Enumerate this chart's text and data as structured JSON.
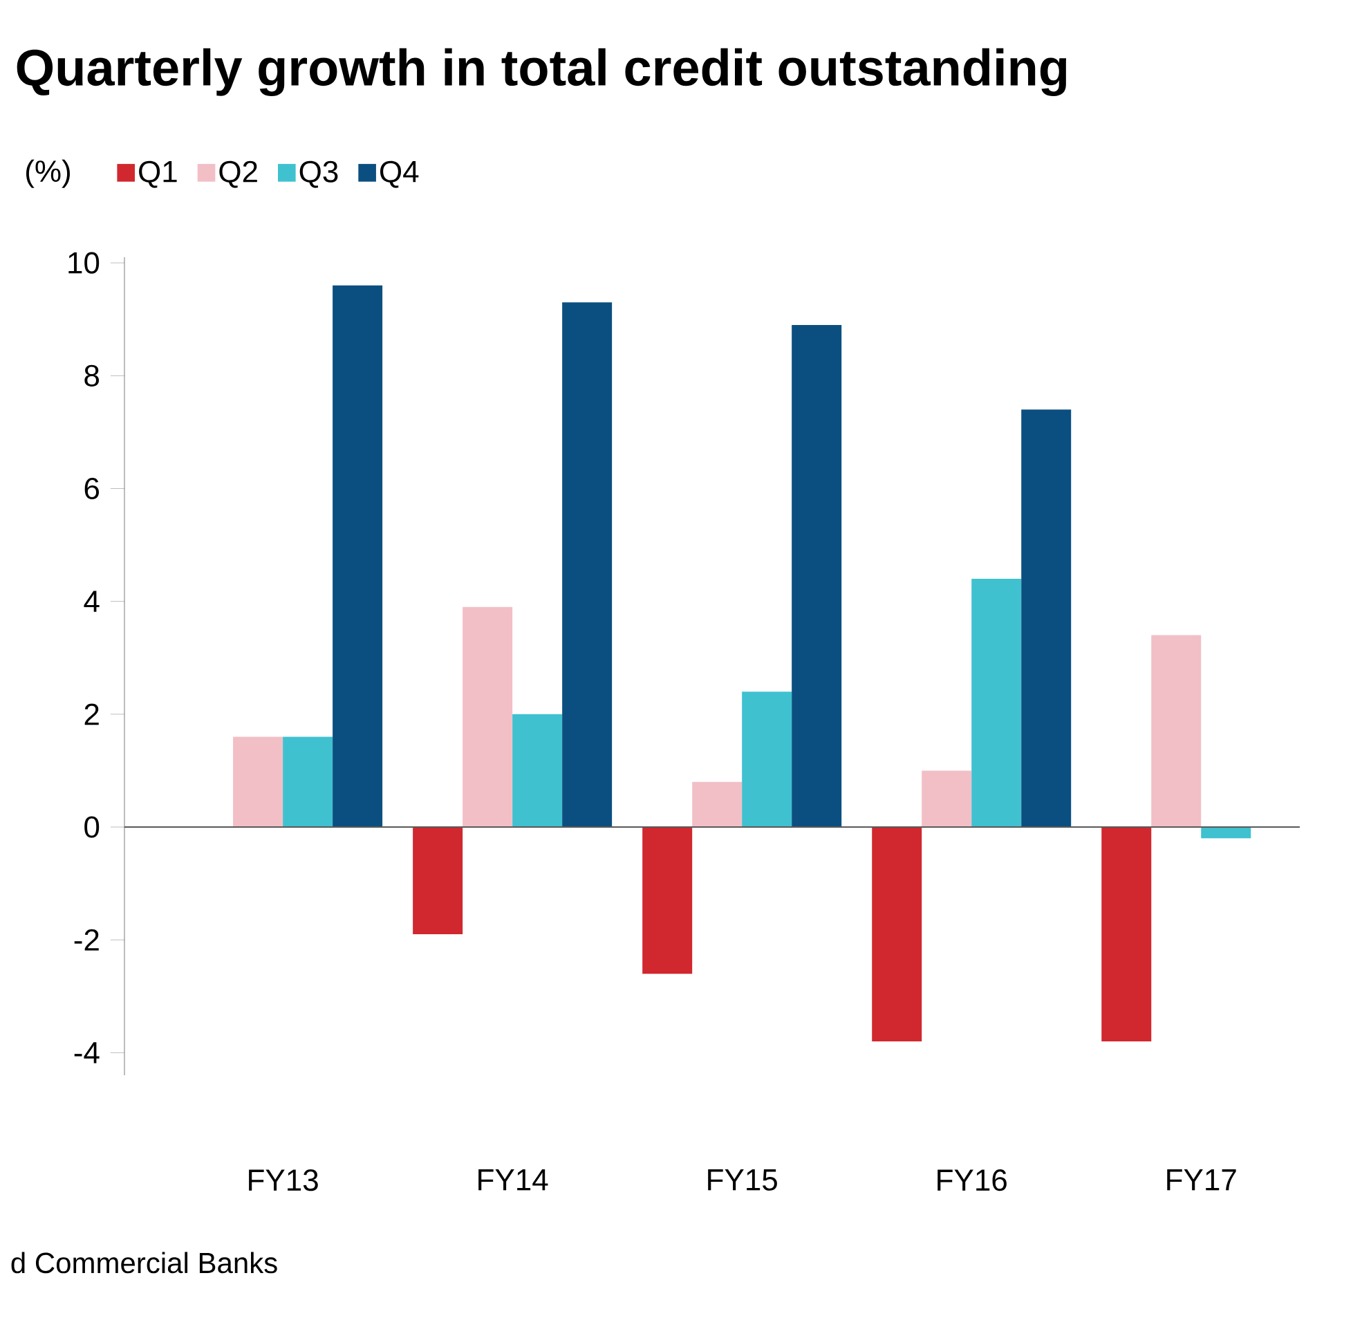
{
  "chart_data": {
    "type": "bar",
    "title": "Quarterly growth in total credit outstanding",
    "ylabel": "(%)",
    "categories": [
      "FY13",
      "FY14",
      "FY15",
      "FY16",
      "FY17"
    ],
    "series": [
      {
        "name": "Q1",
        "color": "#d0282e",
        "values": [
          null,
          -1.9,
          -2.6,
          -3.8,
          -3.8
        ]
      },
      {
        "name": "Q2",
        "color": "#f2bfc6",
        "values": [
          1.6,
          3.9,
          0.8,
          1.0,
          3.4
        ]
      },
      {
        "name": "Q3",
        "color": "#3fc1d0",
        "values": [
          1.6,
          2.0,
          2.4,
          4.4,
          -0.2
        ]
      },
      {
        "name": "Q4",
        "color": "#0b4f80",
        "values": [
          9.6,
          9.3,
          8.9,
          7.4,
          null
        ]
      }
    ],
    "ylim": [
      -4.4,
      10.1
    ],
    "yticks": [
      -4,
      -2,
      0,
      2,
      4,
      6,
      8,
      10
    ],
    "grid": false,
    "legend": "top left",
    "annotations": [
      "d Commercial Banks"
    ],
    "ref_lines": [
      {
        "axis": "y",
        "value": 0,
        "color": "#595959"
      }
    ]
  }
}
